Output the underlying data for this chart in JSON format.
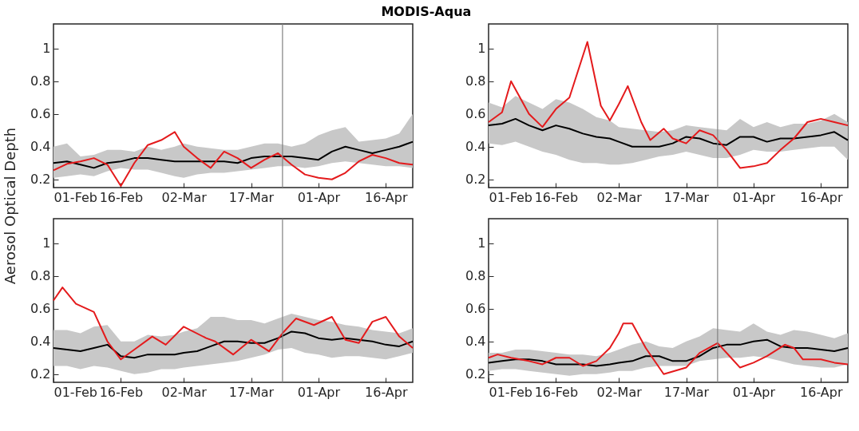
{
  "chart_data": [
    {
      "type": "line",
      "title": "MODIS-Aqua",
      "ylabel": "Aerosol Optical Depth",
      "x": [
        "--02-01",
        "--02-04",
        "--02-07",
        "--02-10",
        "--02-13",
        "--02-16",
        "--02-19",
        "--02-22",
        "--02-25",
        "--02-28",
        "--03-02",
        "--03-05",
        "--03-08",
        "--03-11",
        "--03-14",
        "--03-17",
        "--03-20",
        "--03-23",
        "--03-26",
        "--03-29",
        "--04-01",
        "--04-04",
        "--04-07",
        "--04-10",
        "--04-13",
        "--04-16",
        "--04-19",
        "--04-22"
      ],
      "series": [
        {
          "color": "#000000",
          "values": [
            0.3,
            0.31,
            0.29,
            0.27,
            0.3,
            0.31,
            0.33,
            0.33,
            0.32,
            0.31,
            0.31,
            0.31,
            0.31,
            0.31,
            0.3,
            0.33,
            0.34,
            0.34,
            0.34,
            0.33,
            0.32,
            0.37,
            0.4,
            0.38,
            0.36,
            0.38,
            0.4,
            0.43
          ],
          "lower": [
            0.21,
            0.22,
            0.23,
            0.22,
            0.25,
            0.27,
            0.26,
            0.26,
            0.24,
            0.22,
            0.21,
            0.23,
            0.24,
            0.24,
            0.25,
            0.26,
            0.27,
            0.28,
            0.28,
            0.27,
            0.28,
            0.3,
            0.31,
            0.3,
            0.29,
            0.28,
            0.28,
            0.27
          ],
          "upper": [
            0.4,
            0.42,
            0.34,
            0.35,
            0.38,
            0.38,
            0.37,
            0.4,
            0.38,
            0.4,
            0.42,
            0.4,
            0.39,
            0.38,
            0.38,
            0.4,
            0.42,
            0.42,
            0.4,
            0.42,
            0.47,
            0.5,
            0.52,
            0.43,
            0.44,
            0.45,
            0.48,
            0.6
          ]
        },
        {
          "color": "#e41a1c",
          "values": [
            0.255,
            0.295,
            0.31,
            0.33,
            0.29,
            0.16,
            0.3,
            0.41,
            0.44,
            0.49,
            0.4,
            0.33,
            0.27,
            0.37,
            0.33,
            0.27,
            0.32,
            0.36,
            0.29,
            0.23,
            0.21,
            0.2,
            0.24,
            0.31,
            0.35,
            0.33,
            0.3,
            0.29
          ]
        }
      ],
      "xlim": [
        "--02-01",
        "--04-22"
      ],
      "xticks": [
        {
          "value": "--02-01",
          "label": "01-Feb"
        },
        {
          "value": "--02-16",
          "label": "16-Feb"
        },
        {
          "value": "--03-02",
          "label": "02-Mar"
        },
        {
          "value": "--03-17",
          "label": "17-Mar"
        },
        {
          "value": "--04-01",
          "label": "01-Apr"
        },
        {
          "value": "--04-16",
          "label": "16-Apr"
        }
      ],
      "ylim": [
        0.15,
        1.15
      ],
      "yticks": [
        0.2,
        0.4,
        0.6,
        0.8,
        1
      ],
      "grid": false,
      "marker": "none",
      "line_style": "solid",
      "ref_lines": [
        {
          "axis": "x",
          "value": "--03-24",
          "color": "#808080"
        }
      ]
    },
    {
      "type": "line",
      "x": [
        "--02-01",
        "--02-04",
        "--02-07",
        "--02-10",
        "--02-13",
        "--02-16",
        "--02-19",
        "--02-22",
        "--02-25",
        "--02-28",
        "--03-02",
        "--03-05",
        "--03-08",
        "--03-11",
        "--03-14",
        "--03-17",
        "--03-20",
        "--03-23",
        "--03-26",
        "--03-29",
        "--04-01",
        "--04-04",
        "--04-07",
        "--04-10",
        "--04-13",
        "--04-16",
        "--04-19",
        "--04-22"
      ],
      "series": [
        {
          "color": "#000000",
          "values": [
            0.53,
            0.54,
            0.57,
            0.53,
            0.5,
            0.53,
            0.51,
            0.48,
            0.46,
            0.45,
            0.43,
            0.4,
            0.4,
            0.4,
            0.42,
            0.46,
            0.45,
            0.42,
            0.41,
            0.46,
            0.46,
            0.43,
            0.45,
            0.45,
            0.46,
            0.47,
            0.49,
            0.44
          ],
          "lower": [
            0.42,
            0.41,
            0.43,
            0.4,
            0.37,
            0.35,
            0.32,
            0.3,
            0.3,
            0.29,
            0.29,
            0.3,
            0.32,
            0.34,
            0.35,
            0.37,
            0.35,
            0.33,
            0.33,
            0.35,
            0.38,
            0.37,
            0.37,
            0.38,
            0.39,
            0.4,
            0.4,
            0.32
          ],
          "upper": [
            0.67,
            0.64,
            0.71,
            0.67,
            0.63,
            0.69,
            0.67,
            0.63,
            0.58,
            0.56,
            0.52,
            0.51,
            0.5,
            0.49,
            0.5,
            0.53,
            0.52,
            0.51,
            0.5,
            0.57,
            0.52,
            0.55,
            0.52,
            0.54,
            0.54,
            0.56,
            0.6,
            0.55
          ]
        },
        {
          "color": "#e41a1c",
          "x": [
            "--02-01",
            "--02-04",
            "--02-06",
            "--02-10",
            "--02-13",
            "--02-16",
            "--02-19",
            "--02-23",
            "--02-26",
            "--02-28",
            "--03-02",
            "--03-04",
            "--03-07",
            "--03-09",
            "--03-12",
            "--03-14",
            "--03-17",
            "--03-20",
            "--03-23",
            "--03-26",
            "--03-29",
            "--04-01",
            "--04-04",
            "--04-07",
            "--04-10",
            "--04-13",
            "--04-16",
            "--04-19",
            "--04-22"
          ],
          "values": [
            0.55,
            0.61,
            0.8,
            0.6,
            0.52,
            0.63,
            0.7,
            1.04,
            0.65,
            0.56,
            0.66,
            0.77,
            0.55,
            0.44,
            0.51,
            0.45,
            0.42,
            0.5,
            0.47,
            0.38,
            0.27,
            0.28,
            0.3,
            0.38,
            0.45,
            0.55,
            0.57,
            0.55,
            0.53
          ]
        }
      ],
      "xlim": [
        "--02-01",
        "--04-22"
      ],
      "xticks": [
        {
          "value": "--02-01",
          "label": "01-Feb"
        },
        {
          "value": "--02-16",
          "label": "16-Feb"
        },
        {
          "value": "--03-02",
          "label": "02-Mar"
        },
        {
          "value": "--03-17",
          "label": "17-Mar"
        },
        {
          "value": "--04-01",
          "label": "01-Apr"
        },
        {
          "value": "--04-16",
          "label": "16-Apr"
        }
      ],
      "ylim": [
        0.15,
        1.15
      ],
      "yticks": [
        0.2,
        0.4,
        0.6,
        0.8,
        1
      ],
      "grid": false,
      "marker": "none",
      "line_style": "solid",
      "ref_lines": [
        {
          "axis": "x",
          "value": "--03-24",
          "color": "#808080"
        }
      ]
    },
    {
      "type": "line",
      "x": [
        "--02-01",
        "--02-04",
        "--02-07",
        "--02-10",
        "--02-13",
        "--02-16",
        "--02-19",
        "--02-22",
        "--02-25",
        "--02-28",
        "--03-02",
        "--03-05",
        "--03-08",
        "--03-11",
        "--03-14",
        "--03-17",
        "--03-20",
        "--03-23",
        "--03-26",
        "--03-29",
        "--04-01",
        "--04-04",
        "--04-07",
        "--04-10",
        "--04-13",
        "--04-16",
        "--04-19",
        "--04-22"
      ],
      "series": [
        {
          "color": "#000000",
          "values": [
            0.36,
            0.35,
            0.34,
            0.36,
            0.38,
            0.31,
            0.3,
            0.32,
            0.32,
            0.32,
            0.33,
            0.34,
            0.37,
            0.4,
            0.4,
            0.39,
            0.39,
            0.42,
            0.46,
            0.45,
            0.42,
            0.41,
            0.42,
            0.41,
            0.4,
            0.38,
            0.37,
            0.4
          ],
          "lower": [
            0.25,
            0.25,
            0.23,
            0.25,
            0.24,
            0.22,
            0.2,
            0.21,
            0.23,
            0.23,
            0.24,
            0.25,
            0.26,
            0.27,
            0.28,
            0.3,
            0.32,
            0.35,
            0.36,
            0.33,
            0.32,
            0.3,
            0.31,
            0.31,
            0.3,
            0.29,
            0.31,
            0.33
          ],
          "upper": [
            0.47,
            0.47,
            0.45,
            0.49,
            0.5,
            0.4,
            0.4,
            0.44,
            0.43,
            0.44,
            0.46,
            0.48,
            0.55,
            0.55,
            0.53,
            0.53,
            0.51,
            0.54,
            0.57,
            0.55,
            0.53,
            0.52,
            0.5,
            0.49,
            0.47,
            0.46,
            0.45,
            0.48
          ]
        },
        {
          "color": "#e41a1c",
          "x": [
            "--02-01",
            "--02-03",
            "--02-06",
            "--02-10",
            "--02-13",
            "--02-16",
            "--02-19",
            "--02-23",
            "--02-26",
            "--03-02",
            "--03-07",
            "--03-09",
            "--03-13",
            "--03-17",
            "--03-21",
            "--03-24",
            "--03-27",
            "--03-31",
            "--04-04",
            "--04-07",
            "--04-10",
            "--04-13",
            "--04-16",
            "--04-19",
            "--04-22"
          ],
          "values": [
            0.65,
            0.73,
            0.63,
            0.58,
            0.4,
            0.29,
            0.35,
            0.43,
            0.38,
            0.49,
            0.42,
            0.4,
            0.32,
            0.41,
            0.34,
            0.45,
            0.54,
            0.5,
            0.55,
            0.41,
            0.39,
            0.52,
            0.55,
            0.43,
            0.36
          ]
        }
      ],
      "xlim": [
        "--02-01",
        "--04-22"
      ],
      "xticks": [
        {
          "value": "--02-01",
          "label": "01-Feb"
        },
        {
          "value": "--02-16",
          "label": "16-Feb"
        },
        {
          "value": "--03-02",
          "label": "02-Mar"
        },
        {
          "value": "--03-17",
          "label": "17-Mar"
        },
        {
          "value": "--04-01",
          "label": "01-Apr"
        },
        {
          "value": "--04-16",
          "label": "16-Apr"
        }
      ],
      "ylim": [
        0.15,
        1.15
      ],
      "yticks": [
        0.2,
        0.4,
        0.6,
        0.8,
        1
      ],
      "grid": false,
      "marker": "none",
      "line_style": "solid",
      "ref_lines": [
        {
          "axis": "x",
          "value": "--03-24",
          "color": "#808080"
        }
      ]
    },
    {
      "type": "line",
      "x": [
        "--02-01",
        "--02-04",
        "--02-07",
        "--02-10",
        "--02-13",
        "--02-16",
        "--02-19",
        "--02-22",
        "--02-25",
        "--02-28",
        "--03-02",
        "--03-05",
        "--03-08",
        "--03-11",
        "--03-14",
        "--03-17",
        "--03-20",
        "--03-23",
        "--03-26",
        "--03-29",
        "--04-01",
        "--04-04",
        "--04-07",
        "--04-10",
        "--04-13",
        "--04-16",
        "--04-19",
        "--04-22"
      ],
      "series": [
        {
          "color": "#000000",
          "values": [
            0.27,
            0.28,
            0.29,
            0.29,
            0.28,
            0.26,
            0.26,
            0.26,
            0.25,
            0.26,
            0.27,
            0.28,
            0.31,
            0.31,
            0.28,
            0.28,
            0.31,
            0.36,
            0.38,
            0.38,
            0.4,
            0.41,
            0.37,
            0.36,
            0.36,
            0.35,
            0.34,
            0.36
          ],
          "lower": [
            0.22,
            0.23,
            0.23,
            0.22,
            0.21,
            0.2,
            0.19,
            0.2,
            0.2,
            0.21,
            0.22,
            0.22,
            0.24,
            0.25,
            0.25,
            0.25,
            0.28,
            0.29,
            0.3,
            0.3,
            0.31,
            0.3,
            0.28,
            0.26,
            0.25,
            0.24,
            0.24,
            0.26
          ],
          "upper": [
            0.33,
            0.33,
            0.35,
            0.35,
            0.34,
            0.33,
            0.32,
            0.32,
            0.31,
            0.33,
            0.35,
            0.38,
            0.4,
            0.37,
            0.36,
            0.4,
            0.43,
            0.48,
            0.47,
            0.46,
            0.51,
            0.46,
            0.44,
            0.47,
            0.46,
            0.44,
            0.42,
            0.45
          ]
        },
        {
          "color": "#e41a1c",
          "x": [
            "--02-01",
            "--02-03",
            "--02-06",
            "--02-10",
            "--02-13",
            "--02-16",
            "--02-19",
            "--02-22",
            "--02-25",
            "--02-28",
            "--03-02",
            "--03-03",
            "--03-05",
            "--03-08",
            "--03-12",
            "--03-17",
            "--03-20",
            "--03-24",
            "--03-27",
            "--03-29",
            "--04-01",
            "--04-04",
            "--04-08",
            "--04-10",
            "--04-12",
            "--04-16",
            "--04-19",
            "--04-22"
          ],
          "values": [
            0.3,
            0.32,
            0.3,
            0.28,
            0.26,
            0.3,
            0.3,
            0.25,
            0.28,
            0.36,
            0.45,
            0.51,
            0.51,
            0.36,
            0.2,
            0.24,
            0.33,
            0.39,
            0.3,
            0.24,
            0.27,
            0.31,
            0.38,
            0.36,
            0.29,
            0.29,
            0.27,
            0.26
          ]
        }
      ],
      "xlim": [
        "--02-01",
        "--04-22"
      ],
      "xticks": [
        {
          "value": "--02-01",
          "label": "01-Feb"
        },
        {
          "value": "--02-16",
          "label": "16-Feb"
        },
        {
          "value": "--03-02",
          "label": "02-Mar"
        },
        {
          "value": "--03-17",
          "label": "17-Mar"
        },
        {
          "value": "--04-01",
          "label": "01-Apr"
        },
        {
          "value": "--04-16",
          "label": "16-Apr"
        }
      ],
      "ylim": [
        0.15,
        1.15
      ],
      "yticks": [
        0.2,
        0.4,
        0.6,
        0.8,
        1
      ],
      "grid": false,
      "marker": "none",
      "line_style": "solid",
      "ref_lines": [
        {
          "axis": "x",
          "value": "--03-24",
          "color": "#808080"
        }
      ]
    }
  ]
}
